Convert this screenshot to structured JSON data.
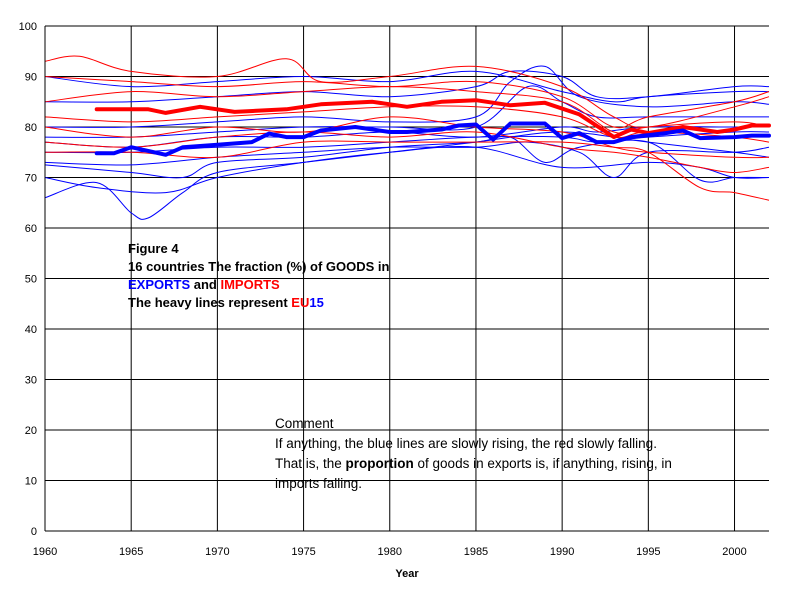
{
  "chart_data": {
    "type": "line",
    "xlabel": "Year",
    "xlim": [
      1960,
      2002
    ],
    "ylim": [
      0,
      100
    ],
    "xticks": [
      1960,
      1965,
      1970,
      1975,
      1980,
      1985,
      1990,
      1995,
      2000
    ],
    "yticks": [
      0,
      10,
      20,
      30,
      40,
      50,
      60,
      70,
      80,
      90,
      100
    ],
    "grid": true,
    "colors": {
      "exports": "#0000ff",
      "imports": "#ff0000"
    },
    "eu15": [
      {
        "color": "#ff0000",
        "points": [
          [
            1963,
            83.5
          ],
          [
            1966,
            83.5
          ],
          [
            1967,
            82.8
          ],
          [
            1969,
            84
          ],
          [
            1971,
            83
          ],
          [
            1974,
            83.5
          ],
          [
            1976,
            84.5
          ],
          [
            1979,
            85
          ],
          [
            1981,
            84
          ],
          [
            1983,
            85
          ],
          [
            1985,
            85.3
          ],
          [
            1987,
            84.3
          ],
          [
            1989,
            84.8
          ],
          [
            1991,
            82.5
          ],
          [
            1993,
            78
          ],
          [
            1994,
            79.5
          ],
          [
            1995,
            78.8
          ],
          [
            1997,
            80
          ],
          [
            1999,
            79
          ],
          [
            2000,
            79.5
          ],
          [
            2001,
            80.3
          ],
          [
            2002,
            80.3
          ]
        ]
      },
      {
        "color": "#0000ff",
        "points": [
          [
            1963,
            74.8
          ],
          [
            1964,
            74.8
          ],
          [
            1965,
            76
          ],
          [
            1967,
            74.5
          ],
          [
            1968,
            76
          ],
          [
            1970,
            76.5
          ],
          [
            1972,
            77
          ],
          [
            1973,
            78.7
          ],
          [
            1974,
            78
          ],
          [
            1975,
            78
          ],
          [
            1976,
            79.3
          ],
          [
            1978,
            80
          ],
          [
            1980,
            79
          ],
          [
            1981,
            79
          ],
          [
            1983,
            79.5
          ],
          [
            1984,
            80.3
          ],
          [
            1985,
            80.5
          ],
          [
            1986,
            77.5
          ],
          [
            1987,
            80.7
          ],
          [
            1988,
            80.7
          ],
          [
            1989,
            80.7
          ],
          [
            1990,
            77.8
          ],
          [
            1991,
            78.8
          ],
          [
            1992,
            77
          ],
          [
            1993,
            77
          ],
          [
            1994,
            78
          ],
          [
            1996,
            78.8
          ],
          [
            1997,
            79.3
          ],
          [
            1998,
            77.8
          ],
          [
            2000,
            78
          ],
          [
            2001,
            78.3
          ],
          [
            2002,
            78.3
          ]
        ]
      }
    ],
    "countries": [
      {
        "color": "#0000ff",
        "points": [
          [
            1960,
            66
          ],
          [
            1963,
            69
          ],
          [
            1965,
            63
          ],
          [
            1966,
            62
          ],
          [
            1968,
            67
          ],
          [
            1970,
            71
          ],
          [
            1975,
            73
          ],
          [
            1980,
            75
          ],
          [
            1985,
            77
          ],
          [
            1990,
            79
          ],
          [
            1995,
            77
          ],
          [
            2000,
            75
          ],
          [
            2002,
            74
          ]
        ]
      },
      {
        "color": "#0000ff",
        "points": [
          [
            1960,
            70
          ],
          [
            1963,
            68
          ],
          [
            1967,
            67
          ],
          [
            1970,
            70
          ],
          [
            1975,
            73
          ],
          [
            1980,
            75
          ],
          [
            1985,
            76
          ],
          [
            1990,
            72
          ],
          [
            1995,
            73
          ],
          [
            1998,
            72
          ],
          [
            2000,
            70
          ],
          [
            2002,
            70
          ]
        ]
      },
      {
        "color": "#0000ff",
        "points": [
          [
            1960,
            72.5
          ],
          [
            1965,
            71
          ],
          [
            1968,
            70
          ],
          [
            1970,
            73
          ],
          [
            1975,
            74
          ],
          [
            1980,
            76
          ],
          [
            1985,
            77
          ],
          [
            1987,
            78
          ],
          [
            1989,
            73
          ],
          [
            1991,
            76
          ],
          [
            1995,
            77
          ],
          [
            1998,
            69.5
          ],
          [
            2000,
            70
          ],
          [
            2002,
            70
          ]
        ]
      },
      {
        "color": "#0000ff",
        "points": [
          [
            1960,
            73
          ],
          [
            1965,
            72.5
          ],
          [
            1970,
            74
          ],
          [
            1975,
            75
          ],
          [
            1980,
            76
          ],
          [
            1985,
            76
          ],
          [
            1988,
            77
          ],
          [
            1991,
            75
          ],
          [
            1993,
            70
          ],
          [
            1995,
            75
          ],
          [
            2000,
            75
          ],
          [
            2002,
            76
          ]
        ]
      },
      {
        "color": "#0000ff",
        "points": [
          [
            1960,
            75
          ],
          [
            1965,
            75
          ],
          [
            1970,
            76
          ],
          [
            1975,
            76
          ],
          [
            1980,
            77
          ],
          [
            1985,
            78
          ],
          [
            1990,
            78
          ],
          [
            1992,
            77
          ],
          [
            1995,
            78
          ],
          [
            2000,
            79
          ],
          [
            2002,
            79
          ]
        ]
      },
      {
        "color": "#0000ff",
        "points": [
          [
            1960,
            77
          ],
          [
            1965,
            76
          ],
          [
            1970,
            78
          ],
          [
            1975,
            78
          ],
          [
            1980,
            79
          ],
          [
            1985,
            78
          ],
          [
            1990,
            80
          ],
          [
            1992,
            79
          ],
          [
            1995,
            80
          ],
          [
            2000,
            80
          ],
          [
            2002,
            80
          ]
        ]
      },
      {
        "color": "#0000ff",
        "points": [
          [
            1960,
            78
          ],
          [
            1965,
            78
          ],
          [
            1970,
            79
          ],
          [
            1975,
            80
          ],
          [
            1980,
            80
          ],
          [
            1985,
            80
          ],
          [
            1988,
            88
          ],
          [
            1990,
            85
          ],
          [
            1992,
            82
          ],
          [
            1995,
            82
          ],
          [
            2000,
            82
          ],
          [
            2002,
            82
          ]
        ]
      },
      {
        "color": "#0000ff",
        "points": [
          [
            1960,
            80
          ],
          [
            1965,
            80
          ],
          [
            1970,
            81
          ],
          [
            1975,
            82
          ],
          [
            1980,
            81
          ],
          [
            1985,
            82
          ],
          [
            1987,
            89
          ],
          [
            1989,
            92
          ],
          [
            1991,
            86
          ],
          [
            1995,
            84
          ],
          [
            2000,
            85
          ],
          [
            2002,
            84.5
          ]
        ]
      },
      {
        "color": "#0000ff",
        "points": [
          [
            1960,
            85
          ],
          [
            1965,
            85
          ],
          [
            1970,
            86
          ],
          [
            1975,
            87
          ],
          [
            1980,
            86
          ],
          [
            1985,
            88
          ],
          [
            1987,
            91
          ],
          [
            1990,
            90
          ],
          [
            1992,
            86
          ],
          [
            1995,
            86
          ],
          [
            2000,
            88
          ],
          [
            2002,
            88
          ]
        ]
      },
      {
        "color": "#0000ff",
        "points": [
          [
            1960,
            90
          ],
          [
            1965,
            88
          ],
          [
            1970,
            89
          ],
          [
            1975,
            90
          ],
          [
            1980,
            89
          ],
          [
            1985,
            91
          ],
          [
            1990,
            87
          ],
          [
            1993,
            85
          ],
          [
            1995,
            86
          ],
          [
            2000,
            87
          ],
          [
            2002,
            87
          ]
        ]
      },
      {
        "color": "#ff0000",
        "points": [
          [
            1960,
            93
          ],
          [
            1962,
            94
          ],
          [
            1965,
            91
          ],
          [
            1970,
            90
          ],
          [
            1974,
            93.5
          ],
          [
            1976,
            89
          ],
          [
            1980,
            90
          ],
          [
            1985,
            92
          ],
          [
            1990,
            88
          ],
          [
            1993,
            82
          ],
          [
            1995,
            80
          ],
          [
            2000,
            84
          ],
          [
            2002,
            86
          ]
        ]
      },
      {
        "color": "#ff0000",
        "points": [
          [
            1960,
            90
          ],
          [
            1965,
            89
          ],
          [
            1970,
            88
          ],
          [
            1975,
            89
          ],
          [
            1980,
            88
          ],
          [
            1985,
            89
          ],
          [
            1990,
            86
          ],
          [
            1993,
            80
          ],
          [
            1995,
            82
          ],
          [
            2000,
            85
          ],
          [
            2002,
            87
          ]
        ]
      },
      {
        "color": "#ff0000",
        "points": [
          [
            1960,
            85
          ],
          [
            1965,
            87
          ],
          [
            1970,
            86
          ],
          [
            1975,
            87
          ],
          [
            1980,
            88
          ],
          [
            1985,
            87
          ],
          [
            1990,
            85
          ],
          [
            1993,
            79
          ],
          [
            1995,
            80
          ],
          [
            2000,
            81
          ],
          [
            2002,
            80
          ]
        ]
      },
      {
        "color": "#ff0000",
        "points": [
          [
            1960,
            82
          ],
          [
            1965,
            81
          ],
          [
            1970,
            82
          ],
          [
            1975,
            83
          ],
          [
            1980,
            84
          ],
          [
            1985,
            84
          ],
          [
            1990,
            82
          ],
          [
            1993,
            78
          ],
          [
            1995,
            79
          ],
          [
            2000,
            78
          ],
          [
            2002,
            77
          ]
        ]
      },
      {
        "color": "#ff0000",
        "points": [
          [
            1960,
            80
          ],
          [
            1965,
            78
          ],
          [
            1970,
            80
          ],
          [
            1975,
            79
          ],
          [
            1980,
            82
          ],
          [
            1985,
            80
          ],
          [
            1990,
            79
          ],
          [
            1993,
            76
          ],
          [
            1995,
            75
          ],
          [
            2000,
            74
          ],
          [
            2002,
            74
          ]
        ]
      },
      {
        "color": "#ff0000",
        "points": [
          [
            1960,
            77
          ],
          [
            1965,
            76
          ],
          [
            1970,
            78
          ],
          [
            1975,
            79
          ],
          [
            1980,
            78
          ],
          [
            1985,
            79
          ],
          [
            1990,
            76
          ],
          [
            1993,
            75
          ],
          [
            1995,
            74
          ],
          [
            1998,
            72
          ],
          [
            2000,
            71
          ],
          [
            2002,
            72
          ]
        ]
      },
      {
        "color": "#ff0000",
        "points": [
          [
            1960,
            75
          ],
          [
            1965,
            75
          ],
          [
            1970,
            74
          ],
          [
            1975,
            77
          ],
          [
            1980,
            77
          ],
          [
            1985,
            77
          ],
          [
            1990,
            77
          ],
          [
            1993,
            76
          ],
          [
            1995,
            75
          ],
          [
            1998,
            68
          ],
          [
            2000,
            67
          ],
          [
            2002,
            65.5
          ]
        ]
      }
    ]
  },
  "figure_text": {
    "line1": "Figure 4",
    "line2": "16 countries  The fraction (%) of GOODS in",
    "line3_exports": "EXPORTS",
    "line3_and": " and ",
    "line3_imports": "IMPORTS",
    "line4_prefix": "The heavy lines represent ",
    "line4_eu": "EU",
    "line4_15": "15"
  },
  "comment": {
    "title": "Comment",
    "line1": " If anything, the blue lines are slowly rising, the red slowly falling.",
    "line2_prefix": "That is, the ",
    "line2_bold": "proportion",
    "line2_suffix": " of goods in exports is, if anything, rising, in imports falling."
  }
}
